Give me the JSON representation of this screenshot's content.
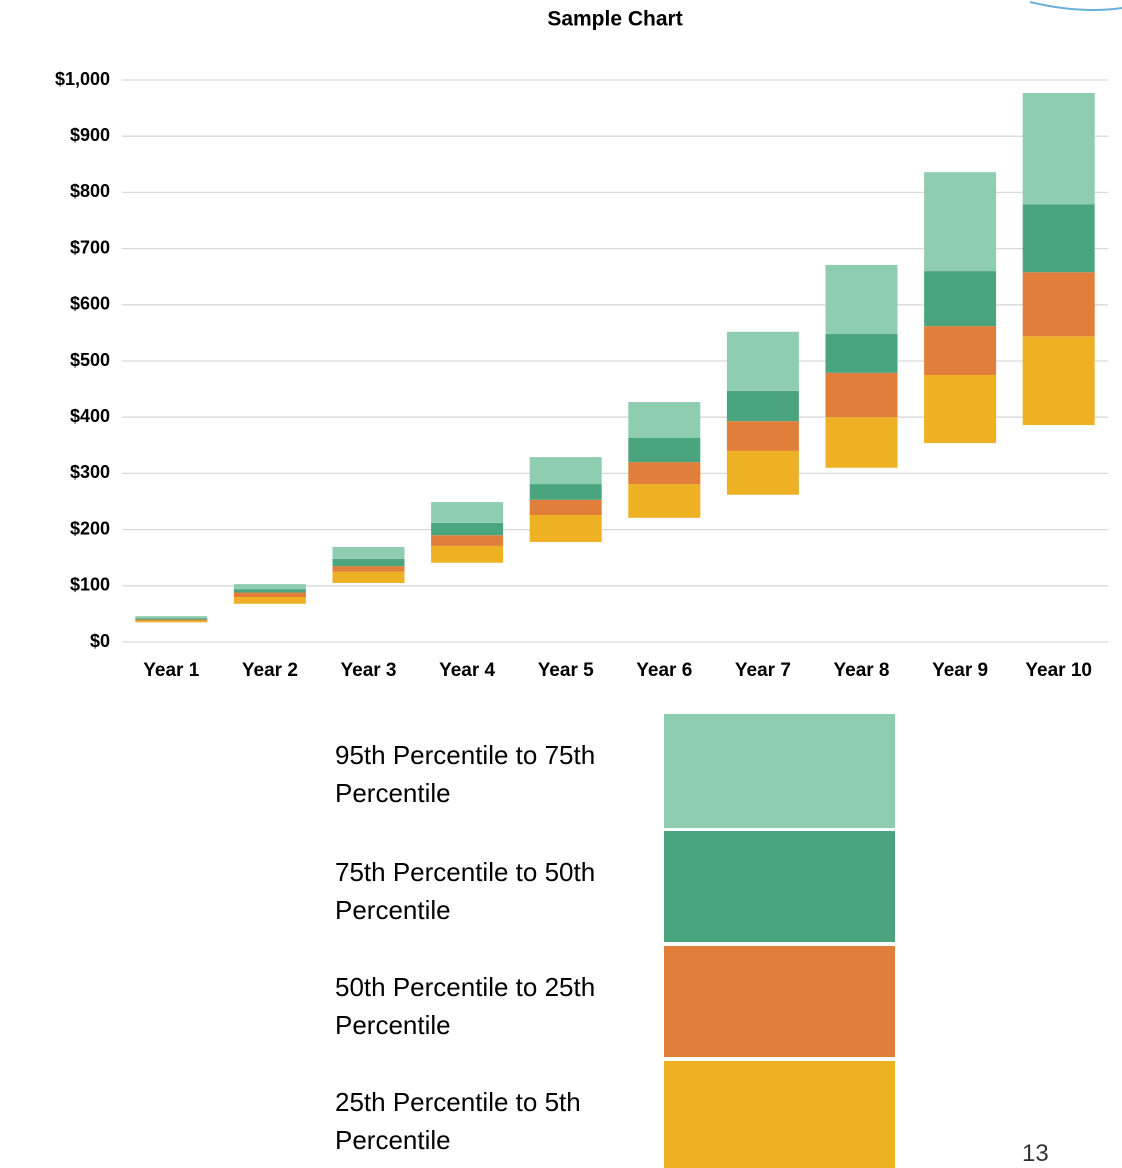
{
  "chart_data": {
    "type": "floating-stacked-bar",
    "title": "Sample Chart",
    "categories": [
      "Year 1",
      "Year 2",
      "Year 3",
      "Year 4",
      "Year 5",
      "Year 6",
      "Year 7",
      "Year 8",
      "Year 9",
      "Year 10"
    ],
    "base": [
      35,
      68,
      105,
      141,
      178,
      221,
      262,
      310,
      354,
      386
    ],
    "series": [
      {
        "name": "25th Percentile to 5th Percentile",
        "color": "#efb124",
        "values": [
          3,
          12,
          20,
          30,
          48,
          60,
          78,
          90,
          121,
          158
        ]
      },
      {
        "name": "50th Percentile to 25th Percentile",
        "color": "#e07e3a",
        "values": [
          2,
          8,
          10,
          19,
          27,
          39,
          53,
          79,
          87,
          114
        ]
      },
      {
        "name": "75th Percentile to 50th Percentile",
        "color": "#4aa57e",
        "values": [
          2,
          6,
          13,
          22,
          28,
          43,
          54,
          69,
          98,
          121
        ]
      },
      {
        "name": "95th Percentile to 75th Percentile",
        "color": "#8fcdb1",
        "values": [
          4,
          9,
          21,
          37,
          48,
          64,
          105,
          123,
          176,
          198
        ]
      }
    ],
    "ylim": [
      0,
      1000
    ],
    "yticks": [
      {
        "value": 0,
        "label": "$0"
      },
      {
        "value": 100,
        "label": "$100"
      },
      {
        "value": 200,
        "label": "$200"
      },
      {
        "value": 300,
        "label": "$300"
      },
      {
        "value": 400,
        "label": "$400"
      },
      {
        "value": 500,
        "label": "$500"
      },
      {
        "value": 600,
        "label": "$600"
      },
      {
        "value": 700,
        "label": "$700"
      },
      {
        "value": 800,
        "label": "$800"
      },
      {
        "value": 900,
        "label": "$900"
      },
      {
        "value": 1000,
        "label": "$1,000"
      }
    ],
    "grid": true
  },
  "page_number": "13"
}
